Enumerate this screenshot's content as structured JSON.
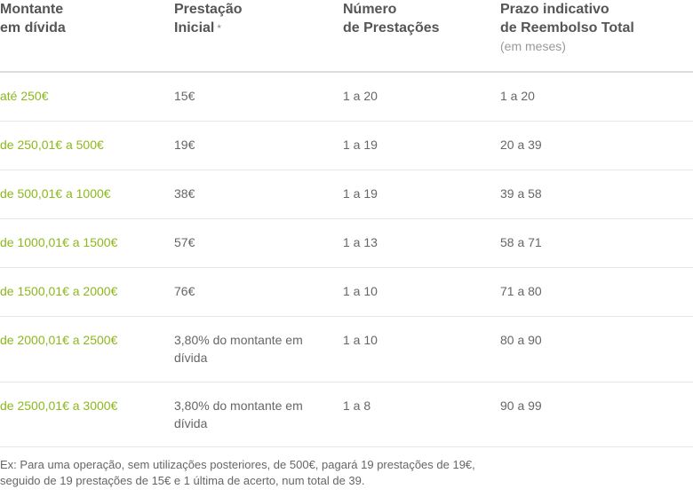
{
  "header": {
    "col1": [
      "Montante",
      "em dívida"
    ],
    "col2": [
      "Prestação",
      "Inicial"
    ],
    "col2_mark": "*",
    "col3": [
      "Número",
      "de Prestações"
    ],
    "col4": [
      "Prazo indicativo",
      "de Reembolso Total"
    ],
    "col4_sub": "(em meses)"
  },
  "rows": [
    {
      "amount": "até 250€",
      "initial": "15€",
      "installments": "1 a 20",
      "term": "1 a 20"
    },
    {
      "amount": "de 250,01€ a 500€",
      "initial": "19€",
      "installments": "1 a 19",
      "term": "20 a 39"
    },
    {
      "amount": "de 500,01€ a 1000€",
      "initial": "38€",
      "installments": "1 a 19",
      "term": "39 a 58"
    },
    {
      "amount": "de 1000,01€ a 1500€",
      "initial": "57€",
      "installments": "1 a 13",
      "term": "58 a 71"
    },
    {
      "amount": "de 1500,01€ a 2000€",
      "initial": "76€",
      "installments": "1 a 10",
      "term": "71 a 80"
    },
    {
      "amount": "de 2000,01€ a 2500€",
      "initial": "3,80% do montante em dívida",
      "installments": "1 a 10",
      "term": "80 a 90"
    },
    {
      "amount": "de 2500,01€ a 3000€",
      "initial": "3,80% do montante em dívida",
      "installments": "1 a 8",
      "term": "90 a 99"
    }
  ],
  "footnote": [
    "Ex: Para uma operação, sem utilizações posteriores, de 500€, pagará 19 prestações de 19€,",
    "seguido de 19 prestações de 15€ e 1 última de acerto, num total de 39."
  ]
}
